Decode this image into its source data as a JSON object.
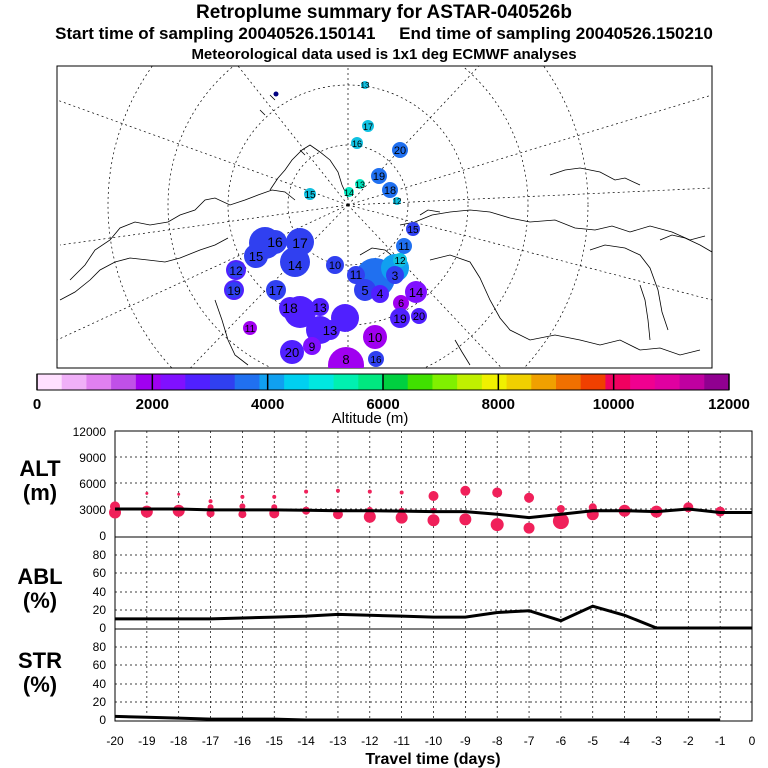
{
  "header": {
    "title": "Retroplume summary for ASTAR-040526b",
    "start_label": "Start time of sampling 20040526.150141",
    "end_label": "End time of sampling 20040526.150210",
    "met_label": "Meteorological data used is 1x1 deg ECMWF analyses"
  },
  "colors": {
    "scale": [
      "#ffe0ff",
      "#f0b0f8",
      "#e080f0",
      "#c050e8",
      "#a000f0",
      "#8010ff",
      "#5020ff",
      "#3040f0",
      "#2070f0",
      "#10a0f0",
      "#00d0f0",
      "#00e8e0",
      "#00f0b0",
      "#00e880",
      "#00d040",
      "#40e000",
      "#80f000",
      "#c0f000",
      "#f0f000",
      "#f0d000",
      "#f0a000",
      "#f07000",
      "#f04000",
      "#f00060",
      "#f00090",
      "#e000a0",
      "#c000a0",
      "#900090"
    ],
    "points": "#f0205a",
    "line": "#000000"
  },
  "chart_data": [
    {
      "type": "scatter",
      "title": "Retroplume map",
      "cluster_labels": [
        {
          "label": "13",
          "color": "#10c0e0"
        },
        {
          "label": "17",
          "color": "#10c0e0"
        },
        {
          "label": "16",
          "color": "#10c0e0"
        },
        {
          "label": "20",
          "color": "#2070f0"
        },
        {
          "label": "19",
          "color": "#2070f0"
        },
        {
          "label": "13",
          "color": "#00e8c0"
        },
        {
          "label": "14",
          "color": "#00e8c0"
        },
        {
          "label": "15",
          "color": "#10c0e0"
        },
        {
          "label": "18",
          "color": "#2070f0"
        },
        {
          "label": "12",
          "color": "#10c0e0"
        },
        {
          "label": "15",
          "color": "#3040f0"
        },
        {
          "label": "11",
          "color": "#2070f0"
        },
        {
          "label": "16",
          "color": "#3040f0"
        },
        {
          "label": "17",
          "color": "#3040f0"
        },
        {
          "label": "15",
          "color": "#3040f0"
        },
        {
          "label": "14",
          "color": "#3040f0"
        },
        {
          "label": "10",
          "color": "#3040f0"
        },
        {
          "label": "12",
          "color": "#10c0e0"
        },
        {
          "label": "3",
          "color": "#3040f0"
        },
        {
          "label": "5",
          "color": "#3040f0"
        },
        {
          "label": "4",
          "color": "#5020ff"
        },
        {
          "label": "11",
          "color": "#3040f0"
        },
        {
          "label": "12",
          "color": "#3040f0"
        },
        {
          "label": "14",
          "color": "#8010ff"
        },
        {
          "label": "17",
          "color": "#3040f0"
        },
        {
          "label": "19",
          "color": "#3040f0"
        },
        {
          "label": "13",
          "color": "#5020ff"
        },
        {
          "label": "18",
          "color": "#5020ff"
        },
        {
          "label": "6",
          "color": "#a000f0"
        },
        {
          "label": "19",
          "color": "#5020ff"
        },
        {
          "label": "20",
          "color": "#5020ff"
        },
        {
          "label": "11",
          "color": "#a000f0"
        },
        {
          "label": "13",
          "color": "#5020ff"
        },
        {
          "label": "10",
          "color": "#a000f0"
        },
        {
          "label": "20",
          "color": "#5020ff"
        },
        {
          "label": "9",
          "color": "#8010ff"
        },
        {
          "label": "8",
          "color": "#a000f0"
        },
        {
          "label": "16",
          "color": "#3040f0"
        }
      ]
    },
    {
      "type": "colorbar",
      "xlabel": "Altitude (m)",
      "range": [
        0,
        12000
      ],
      "tick_labels": [
        "0",
        "2000",
        "4000",
        "6000",
        "8000",
        "10000",
        "12000"
      ]
    },
    {
      "type": "scatter",
      "ylabel": "ALT\n(m)",
      "ylabel_lines": [
        "ALT",
        "(m)"
      ],
      "ylim": [
        0,
        12000
      ],
      "ytick_labels": [
        "12000",
        "9000",
        "6000",
        "3000",
        "0"
      ],
      "mean_line": {
        "x": [
          -20,
          -19,
          -18,
          -17,
          -16,
          -15,
          -14,
          -13,
          -12,
          -11,
          -10,
          -9,
          -8,
          -7,
          -6,
          -5,
          -4,
          -3,
          -2,
          -1,
          0
        ],
        "y": [
          3000,
          3000,
          3000,
          2900,
          2900,
          2900,
          2850,
          2800,
          2800,
          2750,
          2700,
          2700,
          2400,
          2000,
          2400,
          2800,
          2800,
          2700,
          3000,
          2600,
          2600
        ]
      },
      "points": [
        {
          "x": -20,
          "y": 3300,
          "size": 5
        },
        {
          "x": -20,
          "y": 2600,
          "size": 6
        },
        {
          "x": -19,
          "y": 4800,
          "size": 1.5
        },
        {
          "x": -19,
          "y": 2700,
          "size": 6
        },
        {
          "x": -18,
          "y": 4700,
          "size": 1.5
        },
        {
          "x": -18,
          "y": 2800,
          "size": 6
        },
        {
          "x": -17,
          "y": 3900,
          "size": 2
        },
        {
          "x": -17,
          "y": 3200,
          "size": 3
        },
        {
          "x": -17,
          "y": 2500,
          "size": 4
        },
        {
          "x": -16,
          "y": 4400,
          "size": 2
        },
        {
          "x": -16,
          "y": 3300,
          "size": 3
        },
        {
          "x": -16,
          "y": 2400,
          "size": 4
        },
        {
          "x": -15,
          "y": 4400,
          "size": 2
        },
        {
          "x": -15,
          "y": 3200,
          "size": 3
        },
        {
          "x": -15,
          "y": 2500,
          "size": 5
        },
        {
          "x": -14,
          "y": 5000,
          "size": 2
        },
        {
          "x": -14,
          "y": 2800,
          "size": 4
        },
        {
          "x": -13,
          "y": 5100,
          "size": 2
        },
        {
          "x": -13,
          "y": 2400,
          "size": 5
        },
        {
          "x": -12,
          "y": 5000,
          "size": 2
        },
        {
          "x": -12,
          "y": 2900,
          "size": 3
        },
        {
          "x": -12,
          "y": 2100,
          "size": 6
        },
        {
          "x": -11,
          "y": 4900,
          "size": 2
        },
        {
          "x": -11,
          "y": 2800,
          "size": 3
        },
        {
          "x": -11,
          "y": 2000,
          "size": 6
        },
        {
          "x": -10,
          "y": 4500,
          "size": 5
        },
        {
          "x": -10,
          "y": 2800,
          "size": 3
        },
        {
          "x": -10,
          "y": 1700,
          "size": 6
        },
        {
          "x": -9,
          "y": 5100,
          "size": 5
        },
        {
          "x": -9,
          "y": 1800,
          "size": 6
        },
        {
          "x": -8,
          "y": 4900,
          "size": 5
        },
        {
          "x": -8,
          "y": 1200,
          "size": 6.5
        },
        {
          "x": -7,
          "y": 4300,
          "size": 5
        },
        {
          "x": -7,
          "y": 800,
          "size": 5.5
        },
        {
          "x": -6,
          "y": 3000,
          "size": 4
        },
        {
          "x": -6,
          "y": 1600,
          "size": 8
        },
        {
          "x": -5,
          "y": 3200,
          "size": 4
        },
        {
          "x": -5,
          "y": 2400,
          "size": 6
        },
        {
          "x": -4,
          "y": 2800,
          "size": 6
        },
        {
          "x": -3,
          "y": 2700,
          "size": 6
        },
        {
          "x": -2,
          "y": 3200,
          "size": 5
        },
        {
          "x": -1,
          "y": 2700,
          "size": 5
        }
      ]
    },
    {
      "type": "line",
      "ylabel": "ABL\n(%)",
      "ylabel_lines": [
        "ABL",
        "(%)"
      ],
      "ylim": [
        0,
        100
      ],
      "ytick_labels": [
        "80",
        "60",
        "40",
        "20",
        "0"
      ],
      "x": [
        -20,
        -19,
        -18,
        -17,
        -16,
        -15,
        -14,
        -13,
        -12,
        -11,
        -10,
        -9,
        -8,
        -7,
        -6,
        -5,
        -4,
        -3,
        -2,
        -1,
        0
      ],
      "y": [
        10,
        10,
        10,
        10,
        11,
        12,
        13,
        15,
        14,
        13,
        12,
        12,
        17,
        19,
        8,
        24,
        14,
        0,
        0,
        0,
        0
      ]
    },
    {
      "type": "line",
      "ylabel": "STR\n(%)",
      "ylabel_lines": [
        "STR",
        "(%)"
      ],
      "ylim": [
        0,
        100
      ],
      "ytick_labels": [
        "80",
        "60",
        "40",
        "20",
        "0"
      ],
      "xlabel": "Travel time (days)",
      "x": [
        -20,
        -19,
        -18,
        -17,
        -16,
        -15,
        -14,
        -13,
        -12,
        -11,
        -10,
        -9,
        -8,
        -7,
        -6,
        -5,
        -4,
        -3,
        -2,
        -1
      ],
      "y": [
        4,
        3,
        2,
        1,
        1,
        1,
        0,
        0,
        0,
        0,
        0,
        0,
        0,
        0,
        0,
        0,
        0,
        0,
        0,
        0
      ],
      "xtick_labels": [
        "-20",
        "-19",
        "-18",
        "-17",
        "-16",
        "-15",
        "-14",
        "-13",
        "-12",
        "-11",
        "-10",
        "-9",
        "-8",
        "-7",
        "-6",
        "-5",
        "-4",
        "-3",
        "-2",
        "-1",
        "0"
      ]
    }
  ]
}
